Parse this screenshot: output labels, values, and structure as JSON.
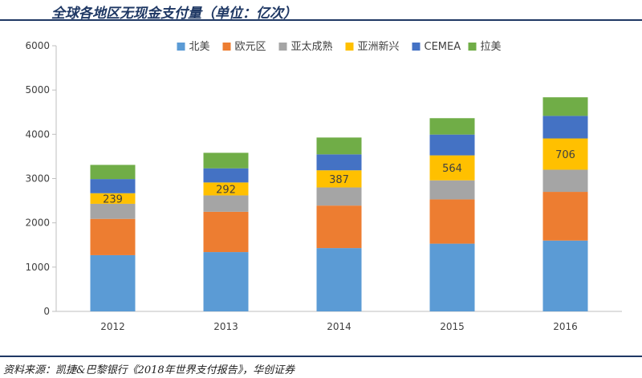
{
  "page": {
    "title": "全球各地区无现金支付量（单位：亿次）",
    "source": "资料来源：凯捷&巴黎银行《2018年世界支付报告》，华创证券"
  },
  "chart_data": {
    "type": "bar",
    "stacked": true,
    "title": "全球各地区无现金支付量（单位：亿次）",
    "xlabel": "",
    "ylabel": "",
    "categories": [
      "2012",
      "2013",
      "2014",
      "2015",
      "2016"
    ],
    "ylim": [
      0,
      6000
    ],
    "yticks": [
      0,
      1000,
      2000,
      3000,
      4000,
      5000,
      6000
    ],
    "legend_position": "top",
    "series": [
      {
        "name": "北美",
        "color": "#5b9bd5",
        "values": [
          1270,
          1340,
          1430,
          1530,
          1600
        ]
      },
      {
        "name": "欧元区",
        "color": "#ed7d31",
        "values": [
          820,
          910,
          960,
          1000,
          1100
        ]
      },
      {
        "name": "亚太成熟",
        "color": "#a5a5a5",
        "values": [
          340,
          370,
          410,
          430,
          500
        ]
      },
      {
        "name": "亚洲新兴",
        "color": "#ffc000",
        "values": [
          239,
          292,
          387,
          564,
          706
        ],
        "labels": [
          "239",
          "292",
          "387",
          "564",
          "706"
        ]
      },
      {
        "name": "CEMEA",
        "color": "#4472c4",
        "values": [
          320,
          320,
          360,
          470,
          510
        ]
      },
      {
        "name": "拉美",
        "color": "#70ad47",
        "values": [
          320,
          350,
          380,
          370,
          420
        ]
      }
    ]
  }
}
